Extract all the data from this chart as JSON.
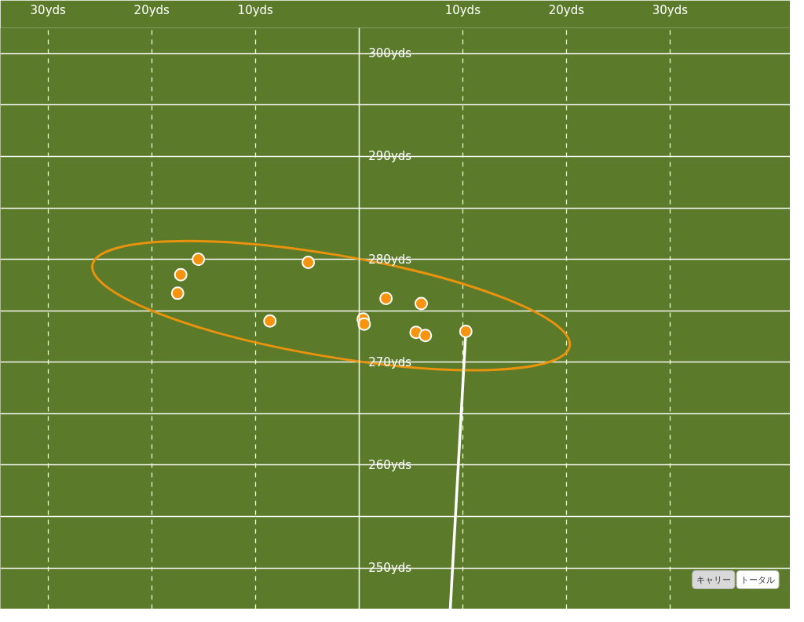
{
  "chart_data": {
    "type": "scatter",
    "xlim": [
      -34.6,
      41.6
    ],
    "ylim": [
      246.0,
      302.5
    ],
    "xticks": [
      {
        "value": -30,
        "label": "30yds"
      },
      {
        "value": -20,
        "label": "20yds"
      },
      {
        "value": -10,
        "label": "10yds"
      },
      {
        "value": 10,
        "label": "10yds"
      },
      {
        "value": 20,
        "label": "20yds"
      },
      {
        "value": 30,
        "label": "30yds"
      }
    ],
    "yticks": [
      {
        "value": 250,
        "label": "250yds"
      },
      {
        "value": 255,
        "label": null
      },
      {
        "value": 260,
        "label": "260yds"
      },
      {
        "value": 265,
        "label": null
      },
      {
        "value": 270,
        "label": "270yds"
      },
      {
        "value": 275,
        "label": null
      },
      {
        "value": 280,
        "label": "280yds"
      },
      {
        "value": 285,
        "label": null
      },
      {
        "value": 290,
        "label": "290yds"
      },
      {
        "value": 295,
        "label": null
      },
      {
        "value": 300,
        "label": "300yds"
      }
    ],
    "grid": true,
    "marker": "circle",
    "series": [
      {
        "type": "line",
        "color": "#ffffff",
        "marker": "none",
        "x": [
          8.8,
          10.3
        ],
        "values": [
          246.0,
          273.0
        ]
      },
      {
        "color": "#f7940f",
        "x": [
          -15.5,
          -17.2,
          -17.5,
          -4.9,
          -8.6,
          0.4,
          0.5,
          2.6,
          6.0,
          5.5,
          6.4,
          10.3
        ],
        "values": [
          280.0,
          278.5,
          276.7,
          279.7,
          274.0,
          274.2,
          273.7,
          276.2,
          275.7,
          272.9,
          272.6,
          273.0
        ]
      }
    ],
    "annotations": [
      "キャリー",
      "トータル"
    ]
  }
}
